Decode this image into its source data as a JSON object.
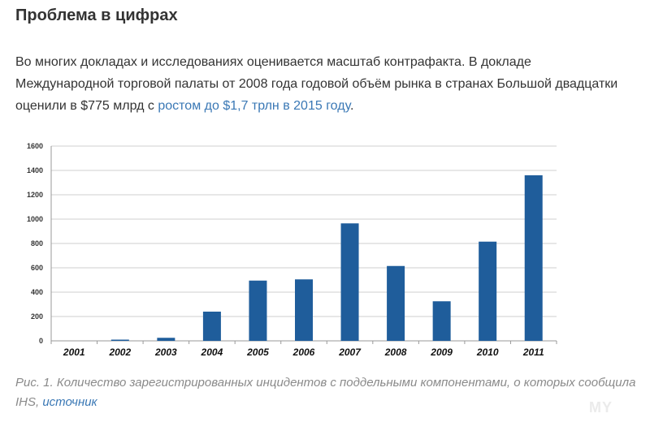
{
  "article": {
    "heading": "Проблема в цифрах",
    "intro_text": "Во многих докладах и исследованиях оценивается масштаб контрафакта. В докладе Международной торговой палаты от 2008 года годовой объём рынка в странах Большой двадцатки оценили в $775 млрд с ",
    "intro_link": "ростом до $1,7 трлн в 2015 году",
    "intro_end": ".",
    "caption_text": "Рис. 1. Количество зарегистрированных инцидентов с поддельными компонентами, о которых сообщила IHS, ",
    "caption_link": "источник",
    "watermark": "MY"
  },
  "chart_data": {
    "type": "bar",
    "categories": [
      "2001",
      "2002",
      "2003",
      "2004",
      "2005",
      "2006",
      "2007",
      "2008",
      "2009",
      "2010",
      "2011"
    ],
    "values": [
      0,
      10,
      25,
      240,
      495,
      505,
      965,
      615,
      325,
      815,
      1360
    ],
    "yticks": [
      "0",
      "200",
      "400",
      "600",
      "800",
      "1000",
      "1200",
      "1400",
      "1600"
    ],
    "ylim": [
      0,
      1600
    ],
    "grid": true,
    "bar_color": "#1f5d9b",
    "title": "",
    "xlabel": "",
    "ylabel": ""
  }
}
